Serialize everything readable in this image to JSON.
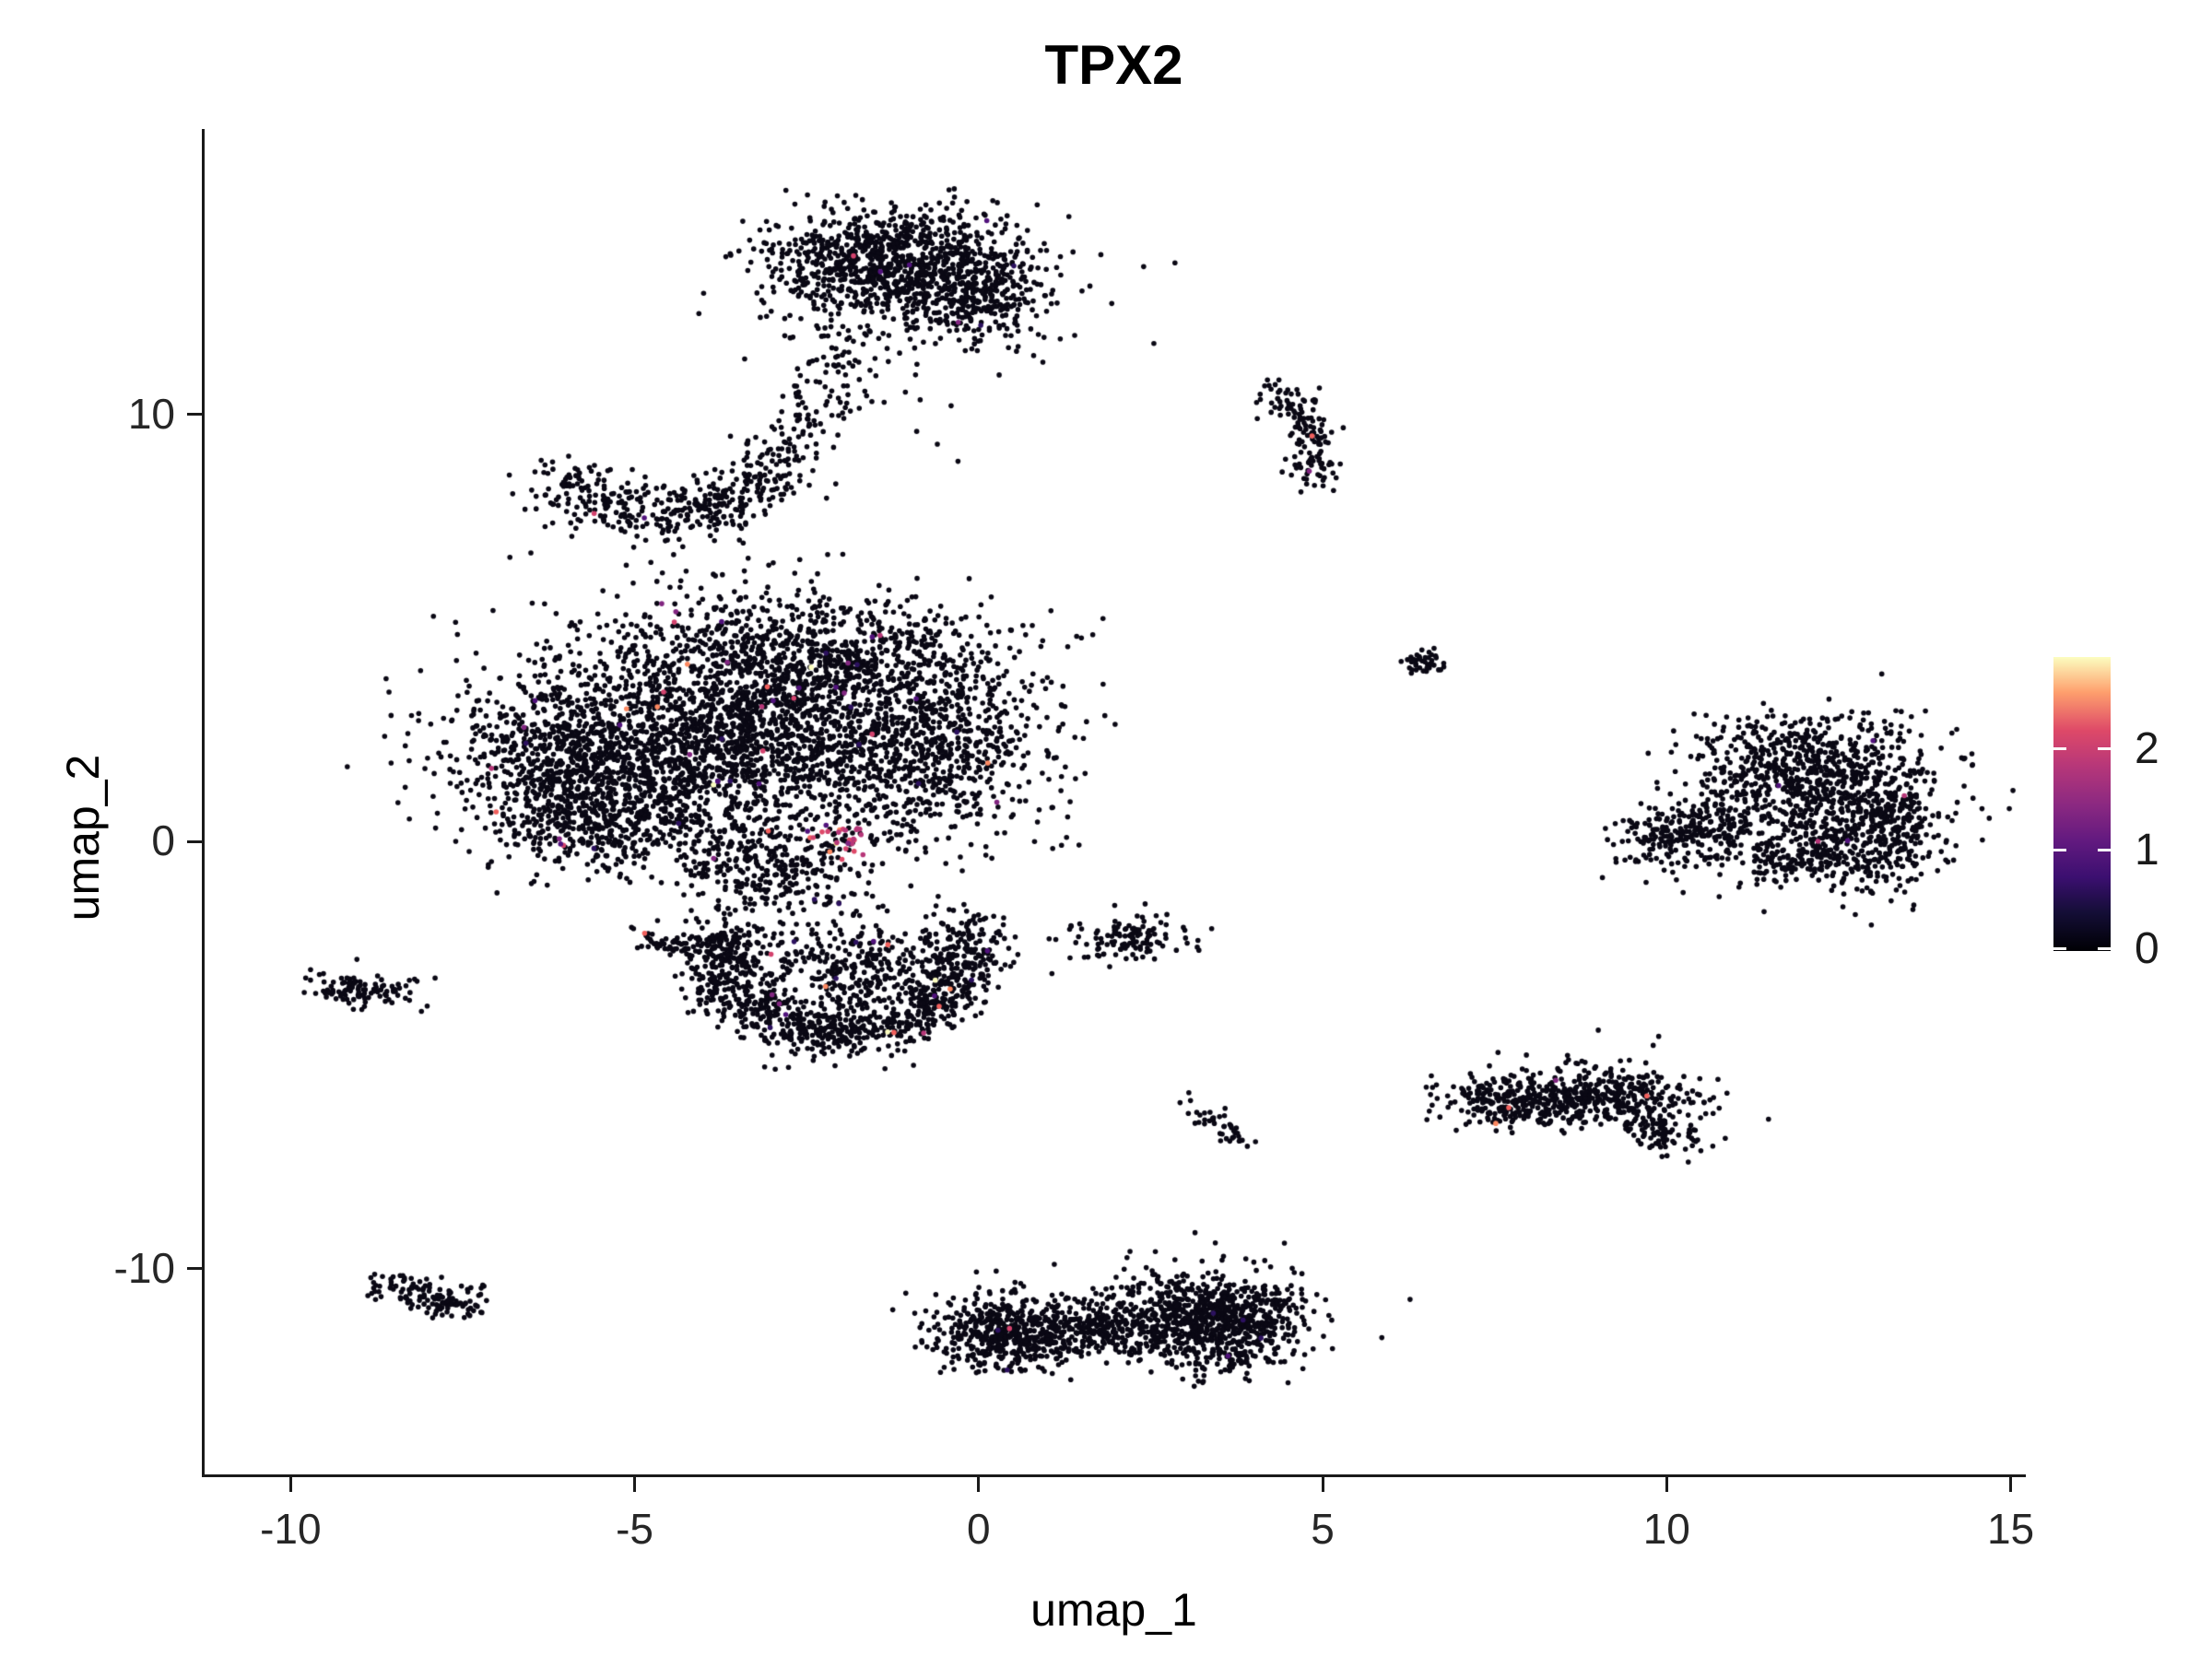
{
  "title": "TPX2",
  "axes": {
    "xlabel": "umap_1",
    "ylabel": "umap_2"
  },
  "legend": {
    "ticks": [
      {
        "label": "2",
        "value": 2
      },
      {
        "label": "1",
        "value": 1
      },
      {
        "label": "0",
        "value": 0
      }
    ],
    "vmin": 0,
    "vmax": 2.9
  },
  "chart_data": {
    "type": "scatter",
    "title": "TPX2",
    "xlabel": "umap_1",
    "ylabel": "umap_2",
    "xlim": [
      -11.25,
      15.18
    ],
    "ylim": [
      -14.82,
      16.68
    ],
    "x_ticks": [
      {
        "label": "-10",
        "value": -10
      },
      {
        "label": "-5",
        "value": -5
      },
      {
        "label": "0",
        "value": 0
      },
      {
        "label": "5",
        "value": 5
      },
      {
        "label": "10",
        "value": 10
      },
      {
        "label": "15",
        "value": 15
      }
    ],
    "y_ticks": [
      {
        "label": "10",
        "value": 10
      },
      {
        "label": "0",
        "value": 0
      },
      {
        "label": "-10",
        "value": -10
      }
    ],
    "grid": false,
    "legend_position": "right",
    "point_color": "#0a0814",
    "point_radius": 2.8,
    "colorbar": {
      "scale_name": "magma",
      "vmin": 0,
      "vmax": 2.9,
      "gradient_stops": [
        [
          0.0,
          "#000004"
        ],
        [
          0.13,
          "#140e36"
        ],
        [
          0.25,
          "#3b0f70"
        ],
        [
          0.38,
          "#641a80"
        ],
        [
          0.5,
          "#8c2981"
        ],
        [
          0.63,
          "#b73779"
        ],
        [
          0.75,
          "#de4968"
        ],
        [
          0.88,
          "#fe9f6d"
        ],
        [
          1.0,
          "#fcfdbf"
        ]
      ]
    },
    "palettes": {
      "sprinkle": [
        [
          "#2c115f",
          3
        ],
        [
          "#51127c",
          3
        ],
        [
          "#822681",
          2
        ],
        [
          "#b73779",
          2
        ],
        [
          "#d3436e",
          1
        ],
        [
          "#f1605d",
          1
        ],
        [
          "#fc8961",
          0.6
        ],
        [
          "#fcfdbf",
          0.4
        ]
      ],
      "hot": [
        [
          "#b73779",
          2
        ],
        [
          "#de4968",
          2
        ],
        [
          "#d3436e",
          1.5
        ],
        [
          "#f1605d",
          1.5
        ],
        [
          "#822681",
          1
        ],
        [
          "#51127c",
          1
        ],
        [
          "#fc8961",
          0.8
        ],
        [
          "#f2e58a",
          0.4
        ]
      ]
    },
    "clusters": [
      {
        "name": "top-blob-core",
        "kind": "gauss",
        "center": [
          -1.35,
          13.55
        ],
        "sigma": [
          0.82,
          0.62
        ],
        "n": 850,
        "colored": 3
      },
      {
        "name": "top-blob-right",
        "kind": "gauss",
        "center": [
          0.05,
          12.95
        ],
        "sigma": [
          0.5,
          0.72
        ],
        "n": 300,
        "colored": 4
      },
      {
        "name": "top-blob-fringe",
        "kind": "gauss",
        "center": [
          -1.0,
          13.0
        ],
        "sigma": [
          1.2,
          0.9
        ],
        "n": 180,
        "colored": 0
      },
      {
        "name": "top-bridge",
        "kind": "path",
        "path": [
          [
            -1.7,
            11.7
          ],
          [
            -2.0,
            10.8
          ],
          [
            -2.3,
            10.1
          ],
          [
            -2.9,
            9.4
          ]
        ],
        "jitter": 0.33,
        "n": 110,
        "colored": 0
      },
      {
        "name": "crescent",
        "kind": "path",
        "path": [
          [
            -6.15,
            8.5
          ],
          [
            -5.6,
            7.95
          ],
          [
            -4.8,
            7.6
          ],
          [
            -4.0,
            7.7
          ],
          [
            -3.3,
            8.2
          ],
          [
            -2.8,
            9.1
          ]
        ],
        "jitter": 0.36,
        "n": 430,
        "colored": 2
      },
      {
        "name": "comma-northeast",
        "kind": "path",
        "path": [
          [
            4.15,
            10.6
          ],
          [
            4.55,
            10.3
          ],
          [
            4.85,
            9.7
          ],
          [
            4.95,
            8.9
          ],
          [
            4.75,
            8.35
          ]
        ],
        "jitter": 0.2,
        "n": 140,
        "colored": 2
      },
      {
        "name": "tiny-dot-east",
        "kind": "gauss",
        "center": [
          6.45,
          4.18
        ],
        "sigma": [
          0.14,
          0.12
        ],
        "n": 45,
        "colored": 0
      },
      {
        "name": "central-core",
        "kind": "gauss",
        "center": [
          -3.6,
          2.7
        ],
        "sigma": [
          1.65,
          1.3
        ],
        "n": 2500,
        "colored": 30
      },
      {
        "name": "central-left",
        "kind": "gauss",
        "center": [
          -5.9,
          1.7
        ],
        "sigma": [
          0.85,
          0.85
        ],
        "n": 650,
        "colored": 6
      },
      {
        "name": "central-top",
        "kind": "gauss",
        "center": [
          -2.1,
          4.5
        ],
        "sigma": [
          1.35,
          0.6
        ],
        "n": 480,
        "colored": 5
      },
      {
        "name": "central-right",
        "kind": "gauss",
        "center": [
          -0.55,
          2.3
        ],
        "sigma": [
          0.8,
          1.15
        ],
        "n": 620,
        "colored": 6
      },
      {
        "name": "central-bl-arm",
        "kind": "gauss",
        "center": [
          -5.3,
          0.3
        ],
        "sigma": [
          0.85,
          0.5
        ],
        "n": 300,
        "colored": 2
      },
      {
        "name": "central-tongue",
        "kind": "gauss",
        "center": [
          -3.0,
          -0.6
        ],
        "sigma": [
          0.7,
          0.5
        ],
        "n": 260,
        "colored": 2
      },
      {
        "name": "hotspot",
        "kind": "gauss",
        "center": [
          -1.95,
          0.1
        ],
        "sigma": [
          0.25,
          0.2
        ],
        "n": 10,
        "colored": 26,
        "palette": "hot"
      },
      {
        "name": "bowl-rim",
        "kind": "path",
        "path": [
          [
            -3.5,
            -1.9
          ],
          [
            -3.8,
            -2.7
          ],
          [
            -3.55,
            -3.5
          ],
          [
            -2.9,
            -4.2
          ],
          [
            -2.0,
            -4.55
          ],
          [
            -1.15,
            -4.25
          ],
          [
            -0.55,
            -3.6
          ],
          [
            -0.25,
            -2.8
          ],
          [
            -0.05,
            -2.0
          ]
        ],
        "jitter": 0.32,
        "n": 950,
        "colored": 14
      },
      {
        "name": "bowl-fill",
        "kind": "gauss",
        "center": [
          -1.95,
          -3.0
        ],
        "sigma": [
          0.95,
          0.7
        ],
        "n": 420,
        "colored": 8
      },
      {
        "name": "bowl-strand",
        "kind": "path",
        "path": [
          [
            -4.85,
            -2.3
          ],
          [
            -4.25,
            -2.45
          ]
        ],
        "jitter": 0.13,
        "n": 45,
        "colored": 0
      },
      {
        "name": "triangle-small",
        "kind": "gauss",
        "center": [
          2.2,
          -2.3
        ],
        "sigma": [
          0.4,
          0.25
        ],
        "n": 120,
        "colored": 0
      },
      {
        "name": "left-blob",
        "kind": "gauss",
        "center": [
          -8.95,
          -3.45
        ],
        "sigma": [
          0.42,
          0.2
        ],
        "n": 110,
        "colored": 0
      },
      {
        "name": "comma-southwest",
        "kind": "path",
        "path": [
          [
            3.1,
            -6.05
          ],
          [
            3.35,
            -6.5
          ],
          [
            3.65,
            -6.95
          ],
          [
            3.8,
            -7.15
          ]
        ],
        "jitter": 0.13,
        "n": 42,
        "colored": 0
      },
      {
        "name": "dumbbell-left",
        "kind": "gauss",
        "center": [
          7.8,
          -6.1
        ],
        "sigma": [
          0.5,
          0.33
        ],
        "n": 260,
        "colored": 2
      },
      {
        "name": "dumbbell-right",
        "kind": "gauss",
        "center": [
          9.3,
          -5.95
        ],
        "sigma": [
          0.55,
          0.4
        ],
        "n": 300,
        "colored": 2
      },
      {
        "name": "dumbbell-ext",
        "kind": "gauss",
        "center": [
          9.95,
          -6.75
        ],
        "sigma": [
          0.3,
          0.28
        ],
        "n": 90,
        "colored": 0
      },
      {
        "name": "dumbbell-bridge",
        "kind": "path",
        "path": [
          [
            8.35,
            -6.0
          ],
          [
            8.9,
            -5.9
          ]
        ],
        "jitter": 0.18,
        "n": 45,
        "colored": 0
      },
      {
        "name": "rightblob-tail",
        "kind": "path",
        "path": [
          [
            9.6,
            0.0
          ],
          [
            10.3,
            0.2
          ],
          [
            10.9,
            0.5
          ]
        ],
        "jitter": 0.34,
        "n": 240,
        "colored": 0
      },
      {
        "name": "rightblob-top",
        "kind": "gauss",
        "center": [
          11.9,
          2.0
        ],
        "sigma": [
          0.85,
          0.5
        ],
        "n": 330,
        "colored": 2
      },
      {
        "name": "rightblob-core",
        "kind": "gauss",
        "center": [
          12.35,
          0.9
        ],
        "sigma": [
          0.9,
          0.85
        ],
        "n": 650,
        "colored": 3
      },
      {
        "name": "rightblob-right",
        "kind": "gauss",
        "center": [
          13.25,
          0.3
        ],
        "sigma": [
          0.3,
          0.75
        ],
        "n": 200,
        "colored": 0
      },
      {
        "name": "rightblob-bottom",
        "kind": "gauss",
        "center": [
          12.0,
          -0.35
        ],
        "sigma": [
          0.6,
          0.38
        ],
        "n": 190,
        "colored": 0
      },
      {
        "name": "bottomleft-blob",
        "kind": "path",
        "path": [
          [
            -8.6,
            -10.35
          ],
          [
            -8.15,
            -10.55
          ],
          [
            -7.75,
            -10.85
          ],
          [
            -7.35,
            -10.7
          ]
        ],
        "jitter": 0.2,
        "n": 130,
        "colored": 0
      },
      {
        "name": "bottom-left-lobe",
        "kind": "gauss",
        "center": [
          0.55,
          -11.5
        ],
        "sigma": [
          0.62,
          0.42
        ],
        "n": 620,
        "colored": 3
      },
      {
        "name": "bottom-waist",
        "kind": "gauss",
        "center": [
          1.85,
          -11.3
        ],
        "sigma": [
          0.3,
          0.3
        ],
        "n": 130,
        "colored": 0
      },
      {
        "name": "bottom-right-lobe",
        "kind": "gauss",
        "center": [
          3.4,
          -11.2
        ],
        "sigma": [
          0.7,
          0.58
        ],
        "n": 880,
        "colored": 4
      },
      {
        "name": "outliers",
        "kind": "points",
        "pts": [
          [
            3.44,
            -9.4
          ],
          [
            4.0,
            -9.85
          ],
          [
            2.2,
            -9.6
          ],
          [
            -2.6,
            6.6
          ],
          [
            -4.3,
            6.9
          ],
          [
            -0.9,
            9.6
          ],
          [
            -0.6,
            9.3
          ],
          [
            -0.3,
            8.9
          ],
          [
            -0.4,
            10.2
          ],
          [
            4.05,
            9.9
          ],
          [
            -7.9,
            -3.2
          ],
          [
            1.1,
            -9.9
          ]
        ],
        "n": 12,
        "colored": 0
      }
    ]
  }
}
